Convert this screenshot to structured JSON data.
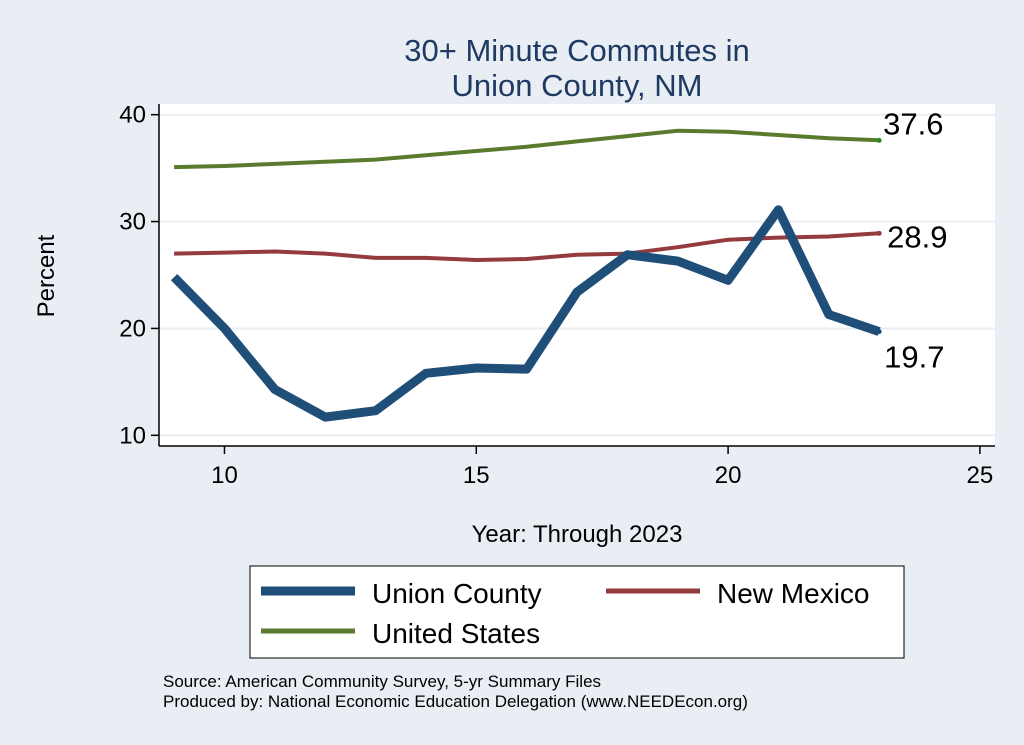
{
  "chart_data": {
    "type": "line",
    "title_lines": [
      "30+ Minute Commutes in",
      "Union County, NM"
    ],
    "xlabel": "Year: Through 2023",
    "ylabel": "Percent",
    "xlim": [
      8.7,
      25.3
    ],
    "ylim": [
      9,
      41
    ],
    "x_ticks": [
      10,
      15,
      20,
      25
    ],
    "y_ticks": [
      10,
      20,
      30,
      40
    ],
    "grid": true,
    "legend_position": "bottom",
    "series": [
      {
        "name": "Union County",
        "color": "#1f4e79",
        "x": [
          9,
          10,
          11,
          12,
          13,
          14,
          15,
          16,
          17,
          18,
          19,
          20,
          21,
          22,
          23
        ],
        "values": [
          24.8,
          20.0,
          14.3,
          11.7,
          12.3,
          15.8,
          16.3,
          16.2,
          23.4,
          26.9,
          26.3,
          24.5,
          31.1,
          21.3,
          19.7
        ],
        "end_label": "19.7"
      },
      {
        "name": "New Mexico",
        "color": "#943b3e",
        "x": [
          9,
          10,
          11,
          12,
          13,
          14,
          15,
          16,
          17,
          18,
          19,
          20,
          21,
          22,
          23
        ],
        "values": [
          27.0,
          27.1,
          27.2,
          27.0,
          26.6,
          26.6,
          26.4,
          26.5,
          26.9,
          27.0,
          27.6,
          28.3,
          28.5,
          28.6,
          28.9
        ],
        "end_label": "28.9"
      },
      {
        "name": "United States",
        "color": "#5a7a2e",
        "x": [
          9,
          10,
          11,
          12,
          13,
          14,
          15,
          16,
          17,
          18,
          19,
          20,
          21,
          22,
          23
        ],
        "values": [
          35.1,
          35.2,
          35.4,
          35.6,
          35.8,
          36.2,
          36.6,
          37.0,
          37.5,
          38.0,
          38.5,
          38.4,
          38.1,
          37.8,
          37.6
        ],
        "end_label": "37.6"
      }
    ],
    "legend": [
      "Union County",
      "New Mexico",
      "United States"
    ]
  },
  "source_lines": [
    "Source: American Community Survey, 5-yr Summary Files",
    "Produced by: National Economic Education Delegation (www.NEEDEcon.org)"
  ]
}
